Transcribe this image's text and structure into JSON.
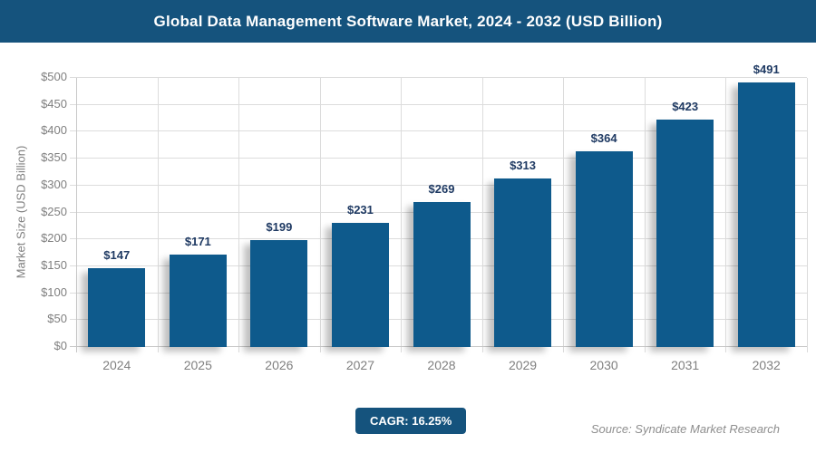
{
  "header": {
    "title": "Global Data Management Software Market, 2024 - 2032 (USD Billion)"
  },
  "footer": {
    "cagr_label": "CAGR: 16.25%",
    "source": "Source: Syndicate Market Research"
  },
  "chart_data": {
    "type": "bar",
    "title": "Global Data Management Software Market, 2024 - 2032 (USD Billion)",
    "categories": [
      "2024",
      "2025",
      "2026",
      "2027",
      "2028",
      "2029",
      "2030",
      "2031",
      "2032"
    ],
    "values": [
      147,
      171,
      199,
      231,
      269,
      313,
      364,
      423,
      491
    ],
    "data_labels": [
      "$147",
      "$171",
      "$199",
      "$231",
      "$269",
      "$313",
      "$364",
      "$423",
      "$491"
    ],
    "value_prefix": "$",
    "xlabel": "",
    "ylabel": "Market Size (USD Billion)",
    "ylim": [
      0,
      500
    ],
    "ytick_step": 50,
    "grid": true,
    "legend": "none",
    "cagr": "16.25%"
  },
  "colors": {
    "header_bg": "#15537D",
    "title_text": "#FFFFFF",
    "bar": "#0E5A8C",
    "data_label": "#1F3A63",
    "axis_text": "#7F7F7F",
    "gridline": "#DCDCDC",
    "axis_line": "#C8C8C8",
    "badge_bg": "#15537D",
    "badge_text": "#FFFFFF",
    "source_text": "#8E8E8E",
    "background": "#FFFFFF"
  }
}
